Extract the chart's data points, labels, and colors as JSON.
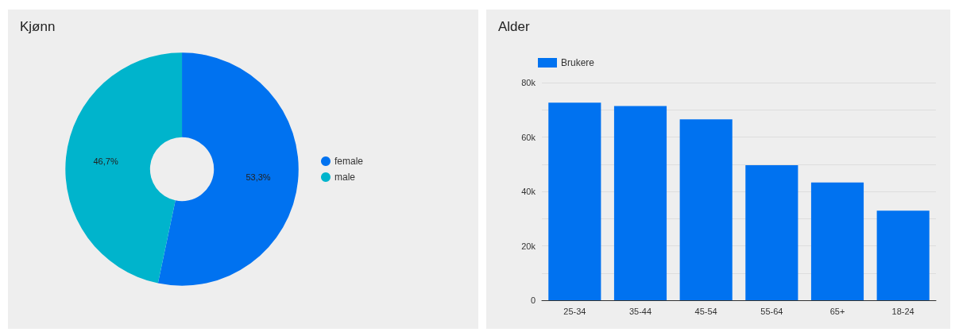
{
  "chart_data": [
    {
      "type": "donut",
      "title": "Kjønn",
      "categories": [
        "female",
        "male"
      ],
      "values": [
        53.3,
        46.7
      ],
      "value_labels": [
        "53,3%",
        "46,7%"
      ],
      "colors": [
        "#0072f0",
        "#00b4cc"
      ],
      "legend": "right"
    },
    {
      "type": "bar",
      "title": "Alder",
      "categories": [
        "25-34",
        "35-44",
        "45-54",
        "55-64",
        "65+",
        "18-24"
      ],
      "series": [
        {
          "name": "Brukere",
          "color": "#0072f0",
          "values": [
            72600,
            71400,
            66500,
            49600,
            43300,
            32900
          ]
        }
      ],
      "ylim": [
        0,
        80000
      ],
      "yticks": [
        0,
        {
          "value": 10000,
          "label": null
        },
        {
          "value": 20000,
          "label": "20k"
        },
        {
          "value": 30000,
          "label": null
        },
        {
          "value": 40000,
          "label": "40k"
        },
        {
          "value": 50000,
          "label": null
        },
        {
          "value": 60000,
          "label": "60k"
        },
        {
          "value": 70000,
          "label": null
        },
        {
          "value": 80000,
          "label": "80k"
        }
      ],
      "grid": "y",
      "legend": "top left"
    }
  ]
}
